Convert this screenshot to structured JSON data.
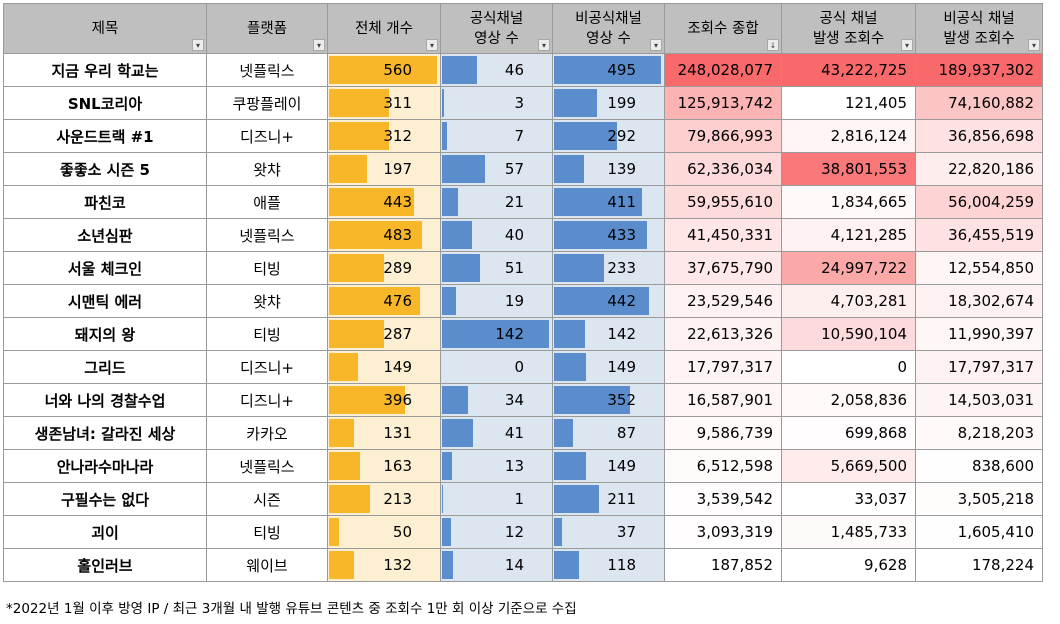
{
  "headers": {
    "title": [
      "제목"
    ],
    "platform": [
      "플랫폼"
    ],
    "total": [
      "전체 개수"
    ],
    "official": [
      "공식채널",
      "영상 수"
    ],
    "unofficial": [
      "비공식채널",
      "영상 수"
    ],
    "views": [
      "조회수 종합"
    ],
    "official_views": [
      "공식 채널",
      "발생 조회수"
    ],
    "unofficial_views": [
      "비공식 채널",
      "발생 조회수"
    ]
  },
  "colors": {
    "header_bg": "#bfbfbf",
    "bar_orange": "#f8b629",
    "bar_orange_bg": "#fdf0d2",
    "bar_blue": "#5b8dcd",
    "bar_blue_bg": "#dce6f1",
    "heat_max": "#f8696b",
    "heat_min": "#ffffff"
  },
  "rows": [
    {
      "title": "지금 우리 학교는",
      "platform": "넷플릭스",
      "total": 560,
      "official": 46,
      "unofficial": 495,
      "views": 248028077,
      "official_views": 43222725,
      "unofficial_views": 189937302
    },
    {
      "title": "SNL코리아",
      "platform": "쿠팡플레이",
      "total": 311,
      "official": 3,
      "unofficial": 199,
      "views": 125913742,
      "official_views": 121405,
      "unofficial_views": 74160882
    },
    {
      "title": "사운드트랙 #1",
      "platform": "디즈니+",
      "total": 312,
      "official": 7,
      "unofficial": 292,
      "views": 79866993,
      "official_views": 2816124,
      "unofficial_views": 36856698
    },
    {
      "title": "좋좋소 시즌 5",
      "platform": "왓챠",
      "total": 197,
      "official": 57,
      "unofficial": 139,
      "views": 62336034,
      "official_views": 38801553,
      "unofficial_views": 22820186
    },
    {
      "title": "파친코",
      "platform": "애플",
      "total": 443,
      "official": 21,
      "unofficial": 411,
      "views": 59955610,
      "official_views": 1834665,
      "unofficial_views": 56004259
    },
    {
      "title": "소년심판",
      "platform": "넷플릭스",
      "total": 483,
      "official": 40,
      "unofficial": 433,
      "views": 41450331,
      "official_views": 4121285,
      "unofficial_views": 36455519
    },
    {
      "title": "서울 체크인",
      "platform": "티빙",
      "total": 289,
      "official": 51,
      "unofficial": 233,
      "views": 37675790,
      "official_views": 24997722,
      "unofficial_views": 12554850
    },
    {
      "title": "시맨틱 에러",
      "platform": "왓챠",
      "total": 476,
      "official": 19,
      "unofficial": 442,
      "views": 23529546,
      "official_views": 4703281,
      "unofficial_views": 18302674
    },
    {
      "title": "돼지의 왕",
      "platform": "티빙",
      "total": 287,
      "official": 142,
      "unofficial": 142,
      "views": 22613326,
      "official_views": 10590104,
      "unofficial_views": 11990397
    },
    {
      "title": "그리드",
      "platform": "디즈니+",
      "total": 149,
      "official": 0,
      "unofficial": 149,
      "views": 17797317,
      "official_views": 0,
      "unofficial_views": 17797317
    },
    {
      "title": "너와 나의 경찰수업",
      "platform": "디즈니+",
      "total": 396,
      "official": 34,
      "unofficial": 352,
      "views": 16587901,
      "official_views": 2058836,
      "unofficial_views": 14503031
    },
    {
      "title": "생존남녀: 갈라진 세상",
      "platform": "카카오",
      "total": 131,
      "official": 41,
      "unofficial": 87,
      "views": 9586739,
      "official_views": 699868,
      "unofficial_views": 8218203
    },
    {
      "title": "안나라수마나라",
      "platform": "넷플릭스",
      "total": 163,
      "official": 13,
      "unofficial": 149,
      "views": 6512598,
      "official_views": 5669500,
      "unofficial_views": 838600
    },
    {
      "title": "구필수는 없다",
      "platform": "시즌",
      "total": 213,
      "official": 1,
      "unofficial": 211,
      "views": 3539542,
      "official_views": 33037,
      "unofficial_views": 3505218
    },
    {
      "title": "괴이",
      "platform": "티빙",
      "total": 50,
      "official": 12,
      "unofficial": 37,
      "views": 3093319,
      "official_views": 1485733,
      "unofficial_views": 1605410
    },
    {
      "title": "홀인러브",
      "platform": "웨이브",
      "total": 132,
      "official": 14,
      "unofficial": 118,
      "views": 187852,
      "official_views": 9628,
      "unofficial_views": 178224
    }
  ],
  "footnote": "*2022년 1월 이후 방영 IP / 최근 3개월 내 발행 유튜브 콘텐츠 중 조회수 1만 회 이상 기준으로 수집"
}
